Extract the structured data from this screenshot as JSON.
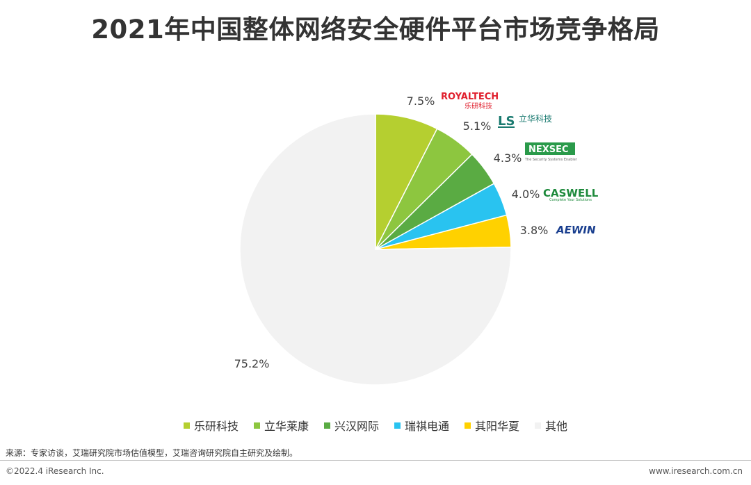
{
  "title": "2021年中国整体网络安全硬件平台市场竞争格局",
  "chart_data": {
    "type": "pie",
    "categories": [
      "乐研科技",
      "立华莱康",
      "兴汉网际",
      "瑞祺电通",
      "其阳华夏",
      "其他"
    ],
    "values": [
      7.5,
      5.1,
      4.3,
      4.0,
      3.8,
      75.2
    ],
    "labels": [
      "7.5%",
      "5.1%",
      "4.3%",
      "4.0%",
      "3.8%",
      "75.2%"
    ],
    "colors": [
      "#b5cf30",
      "#8dc63f",
      "#5aab43",
      "#29c3f0",
      "#ffd100",
      "#f2f2f2"
    ],
    "legend_position": "bottom",
    "start_angle": "12 o'clock, clockwise"
  },
  "logos": [
    {
      "name": "royaltech-logo",
      "text_main": "ROYALTECH",
      "text_sub": "乐研科技",
      "color": "#e0202e"
    },
    {
      "name": "lanner-logo",
      "text_main": "LS",
      "text_sub": "立华科技",
      "color": "#1a7a70"
    },
    {
      "name": "nexcom-logo",
      "text_main": "NEXSEC",
      "text_sub": "The Security Systems Enabler",
      "color": "#2a9a4a"
    },
    {
      "name": "caswell-logo",
      "text_main": "CASWELL",
      "text_sub": "Complete Your Solutions",
      "color": "#1e8a3c"
    },
    {
      "name": "aewin-logo",
      "text_main": "AEWIN",
      "color": "#1a3f8f"
    }
  ],
  "footer": {
    "source": "来源：专家访谈，艾瑞研究院市场估值模型，艾瑞咨询研究院自主研究及绘制。",
    "copyright": "©2022.4 iResearch Inc.",
    "website": "www.iresearch.com.cn"
  }
}
